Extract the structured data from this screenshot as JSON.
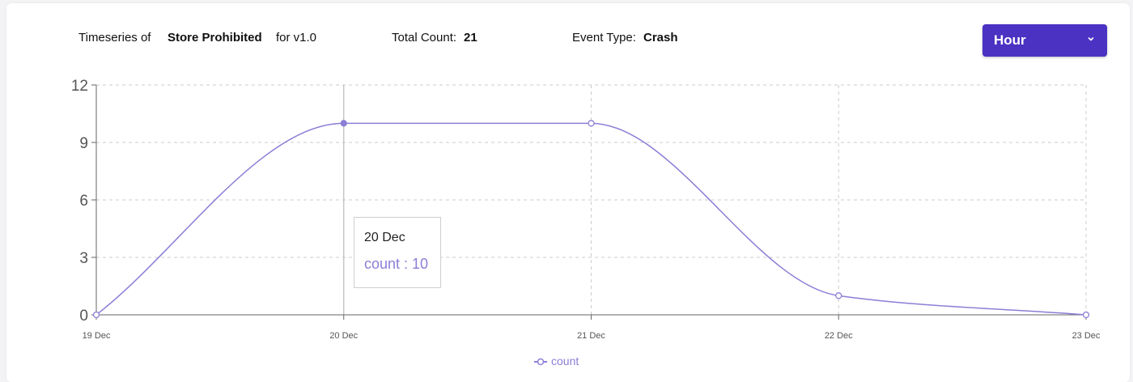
{
  "header": {
    "timeseries_prefix": "Timeseries of",
    "event_name": "Store Prohibited",
    "version_text": "for v1.0",
    "total_count_label": "Total Count:",
    "total_count_value": "21",
    "event_type_label": "Event Type:",
    "event_type_value": "Crash"
  },
  "granularity_select": {
    "selected": "Hour"
  },
  "colors": {
    "accent": "#4b32c3",
    "series": "#8a7fd6",
    "grid": "#cccccc",
    "axis": "#666666"
  },
  "tooltip": {
    "title": "20 Dec",
    "value_text": "count : 10"
  },
  "legend": {
    "items": [
      "count"
    ]
  },
  "chart_data": {
    "type": "line",
    "categories": [
      "19 Dec",
      "20 Dec",
      "21 Dec",
      "22 Dec",
      "23 Dec"
    ],
    "series": [
      {
        "name": "count",
        "values": [
          0,
          10,
          10,
          1,
          0
        ]
      }
    ],
    "yticks": [
      0,
      3,
      6,
      9,
      12
    ],
    "ylim": [
      0,
      12
    ],
    "grid": true,
    "curve": "smooth",
    "highlighted_category": "20 Dec",
    "legend_position": "bottom"
  }
}
